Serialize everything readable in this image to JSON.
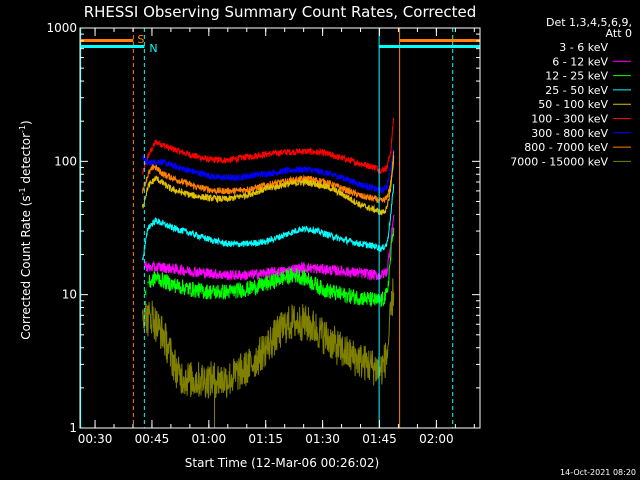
{
  "chart_data": {
    "type": "line",
    "title": "RHESSI Observing Summary Count Rates, Corrected",
    "xlabel": "Start Time (12-Mar-06 00:26:02)",
    "ylabel_main": "Corrected Count Rate (s",
    "ylabel_sup": "-1",
    "ylabel_tail": " detector",
    "ylabel_sup2": "-1",
    "ylabel_close": ")",
    "x_tick_labels": [
      "00:30",
      "00:45",
      "01:00",
      "01:15",
      "01:30",
      "01:45",
      "02:00"
    ],
    "x_tick_minutes": [
      30,
      45,
      60,
      75,
      90,
      105,
      120
    ],
    "xlim_minutes": [
      26.03,
      131.5
    ],
    "y_scale": "log",
    "ylim": [
      1,
      1000
    ],
    "y_tick_labels": [
      "1",
      "10",
      "100",
      "1000"
    ],
    "y_tick_values": [
      1,
      10,
      100,
      1000
    ],
    "legend_header": [
      "Det 1,3,4,5,6,9,",
      "Att 0"
    ],
    "timestamp": "14-Oct-2021 08:20",
    "series": [
      {
        "name": "3 - 6 keV",
        "color": "#ffffff",
        "line_color": "#000000"
      },
      {
        "name": "6 - 12 keV",
        "color": "#ff00ff"
      },
      {
        "name": "12 - 25 keV",
        "color": "#00ff00"
      },
      {
        "name": "25 - 50 keV",
        "color": "#00ffff"
      },
      {
        "name": "50 - 100 keV",
        "color": "#e0c000"
      },
      {
        "name": "100 - 300 keV",
        "color": "#ff0000"
      },
      {
        "name": "300 - 800 keV",
        "color": "#0000ff"
      },
      {
        "name": "800 - 7000 keV",
        "color": "#ff8000"
      },
      {
        "name": "7000 - 15000 keV",
        "color": "#808000"
      }
    ],
    "curves": [
      {
        "color": "#ff0000",
        "points": [
          [
            42.5,
            80
          ],
          [
            44,
            110
          ],
          [
            46,
            140
          ],
          [
            50,
            125
          ],
          [
            55,
            112
          ],
          [
            60,
            103
          ],
          [
            65,
            102
          ],
          [
            70,
            108
          ],
          [
            75,
            113
          ],
          [
            80,
            117
          ],
          [
            85,
            119
          ],
          [
            90,
            116
          ],
          [
            95,
            106
          ],
          [
            100,
            96
          ],
          [
            104,
            90
          ],
          [
            105.5,
            85
          ],
          [
            107,
            90
          ],
          [
            108,
            120
          ],
          [
            108.8,
            230
          ]
        ]
      },
      {
        "color": "#0000ff",
        "points": [
          [
            42.5,
            108
          ],
          [
            44,
            97
          ],
          [
            47,
            100
          ],
          [
            52,
            90
          ],
          [
            57,
            82
          ],
          [
            62,
            76
          ],
          [
            67,
            75
          ],
          [
            72,
            79
          ],
          [
            77,
            82
          ],
          [
            82,
            86
          ],
          [
            86,
            87
          ],
          [
            90,
            83
          ],
          [
            95,
            76
          ],
          [
            100,
            67
          ],
          [
            104,
            62
          ],
          [
            105.5,
            60
          ],
          [
            107,
            65
          ],
          [
            108,
            90
          ],
          [
            108.8,
            130
          ]
        ]
      },
      {
        "color": "#ff8000",
        "points": [
          [
            42.5,
            60
          ],
          [
            44,
            80
          ],
          [
            45.5,
            92
          ],
          [
            48,
            80
          ],
          [
            52,
            72
          ],
          [
            57,
            64
          ],
          [
            62,
            60
          ],
          [
            67,
            60
          ],
          [
            72,
            63
          ],
          [
            77,
            68
          ],
          [
            82,
            72
          ],
          [
            86,
            74
          ],
          [
            90,
            71
          ],
          [
            95,
            63
          ],
          [
            100,
            55
          ],
          [
            104,
            52
          ],
          [
            105.5,
            50
          ],
          [
            107,
            53
          ],
          [
            108,
            70
          ],
          [
            108.8,
            120
          ]
        ]
      },
      {
        "color": "#e0c000",
        "points": [
          [
            42.5,
            45
          ],
          [
            44,
            65
          ],
          [
            46,
            75
          ],
          [
            50,
            62
          ],
          [
            55,
            56
          ],
          [
            60,
            53
          ],
          [
            65,
            52
          ],
          [
            70,
            56
          ],
          [
            75,
            62
          ],
          [
            80,
            67
          ],
          [
            85,
            70
          ],
          [
            88,
            68
          ],
          [
            92,
            63
          ],
          [
            96,
            55
          ],
          [
            100,
            47
          ],
          [
            104,
            43
          ],
          [
            105.5,
            41
          ],
          [
            107,
            44
          ],
          [
            108,
            65
          ],
          [
            108.8,
            110
          ]
        ]
      },
      {
        "color": "#00ffff",
        "points": [
          [
            42.5,
            18
          ],
          [
            44,
            32
          ],
          [
            46,
            36
          ],
          [
            50,
            32
          ],
          [
            55,
            29
          ],
          [
            60,
            26
          ],
          [
            65,
            24
          ],
          [
            70,
            24
          ],
          [
            75,
            25
          ],
          [
            80,
            28
          ],
          [
            84,
            31
          ],
          [
            87,
            31
          ],
          [
            90,
            29
          ],
          [
            95,
            26
          ],
          [
            100,
            24
          ],
          [
            104,
            23
          ],
          [
            105.5,
            22
          ],
          [
            107,
            24
          ],
          [
            108,
            40
          ],
          [
            108.8,
            70
          ]
        ]
      },
      {
        "color": "#ff00ff",
        "points": [
          [
            43,
            17
          ],
          [
            44,
            16
          ],
          [
            48,
            16
          ],
          [
            55,
            15
          ],
          [
            60,
            14.5
          ],
          [
            65,
            14
          ],
          [
            70,
            14
          ],
          [
            75,
            14.5
          ],
          [
            80,
            15
          ],
          [
            85,
            16
          ],
          [
            90,
            15.5
          ],
          [
            95,
            15
          ],
          [
            100,
            14.5
          ],
          [
            104,
            14
          ],
          [
            105.5,
            14
          ],
          [
            107,
            15
          ],
          [
            108,
            25
          ],
          [
            108.8,
            40
          ]
        ]
      },
      {
        "color": "#00ff00",
        "points": [
          [
            43,
            9
          ],
          [
            44,
            12
          ],
          [
            46,
            13.5
          ],
          [
            50,
            12
          ],
          [
            55,
            11
          ],
          [
            60,
            10.5
          ],
          [
            65,
            10.5
          ],
          [
            70,
            11
          ],
          [
            75,
            12
          ],
          [
            80,
            13.5
          ],
          [
            83,
            14
          ],
          [
            86,
            13
          ],
          [
            90,
            11
          ],
          [
            95,
            10
          ],
          [
            100,
            9.5
          ],
          [
            104,
            9
          ],
          [
            105.5,
            9
          ],
          [
            107,
            10
          ],
          [
            108,
            20
          ],
          [
            108.8,
            35
          ]
        ]
      },
      {
        "color": "#000000",
        "points": [
          [
            42.5,
            7
          ],
          [
            44,
            9
          ],
          [
            45,
            8
          ],
          [
            46,
            6
          ],
          [
            48,
            5
          ],
          [
            50,
            4
          ],
          [
            52,
            3
          ],
          [
            55,
            2.6
          ],
          [
            60,
            2.6
          ],
          [
            65,
            2.6
          ],
          [
            70,
            3
          ],
          [
            73,
            3.5
          ],
          [
            75,
            4
          ],
          [
            78,
            5
          ],
          [
            80,
            6
          ],
          [
            82,
            7
          ],
          [
            85,
            7
          ],
          [
            88,
            6.5
          ],
          [
            90,
            6
          ],
          [
            92,
            5
          ],
          [
            95,
            4
          ],
          [
            98,
            3
          ],
          [
            100,
            2.8
          ],
          [
            104,
            2.8
          ],
          [
            105.5,
            2.8
          ],
          [
            107,
            3.5
          ],
          [
            108,
            8
          ],
          [
            108.8,
            12
          ]
        ]
      },
      {
        "color": "#808000",
        "points": [
          [
            42.5,
            8
          ],
          [
            44,
            6.5
          ],
          [
            45,
            7
          ],
          [
            46,
            6
          ],
          [
            48,
            5
          ],
          [
            50,
            3.5
          ],
          [
            52,
            2.5
          ],
          [
            55,
            2.3
          ],
          [
            58,
            2.3
          ],
          [
            60,
            2.3
          ],
          [
            63,
            2.3
          ],
          [
            65,
            2.3
          ],
          [
            68,
            2.6
          ],
          [
            70,
            2.8
          ],
          [
            73,
            3.4
          ],
          [
            75,
            4
          ],
          [
            78,
            5
          ],
          [
            80,
            5.8
          ],
          [
            82,
            6.2
          ],
          [
            85,
            6.2
          ],
          [
            88,
            5.6
          ],
          [
            90,
            5
          ],
          [
            92,
            4.5
          ],
          [
            95,
            3.8
          ],
          [
            98,
            3.4
          ],
          [
            100,
            3.2
          ],
          [
            102,
            3
          ],
          [
            104,
            2.8
          ],
          [
            105.5,
            2.8
          ],
          [
            107,
            3.5
          ],
          [
            108,
            7
          ],
          [
            108.8,
            12
          ]
        ]
      }
    ],
    "attenuator_markers": [
      {
        "label": "S",
        "color": "#ff8000",
        "dash": true
      },
      {
        "label": "N",
        "color": "#00ffff",
        "dash": true
      }
    ]
  }
}
